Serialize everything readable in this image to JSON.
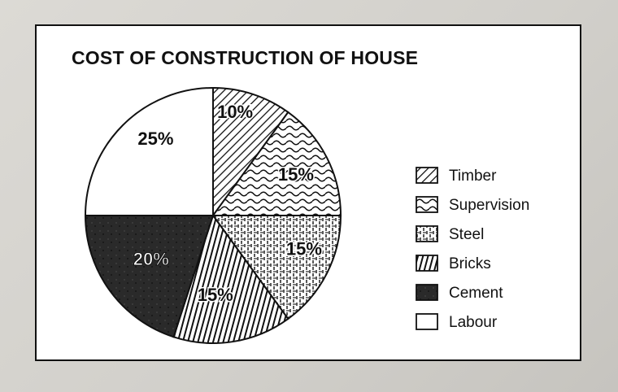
{
  "chart_data": {
    "type": "pie",
    "title": "COST OF CONSTRUCTION OF HOUSE",
    "slices": [
      {
        "name": "Timber",
        "value": 10,
        "label": "10%",
        "pattern": "diagonal-hatch",
        "label_color": "#111111"
      },
      {
        "name": "Supervision",
        "value": 15,
        "label": "15%",
        "pattern": "wavy",
        "label_color": "#111111"
      },
      {
        "name": "Steel",
        "value": 15,
        "label": "15%",
        "pattern": "dashed-grid",
        "label_color": "#111111"
      },
      {
        "name": "Bricks",
        "value": 15,
        "label": "15%",
        "pattern": "vertical-hatch",
        "label_color": "#111111"
      },
      {
        "name": "Cement",
        "value": 20,
        "label": "20%",
        "pattern": "solid-dark",
        "label_color": "#ffffff"
      },
      {
        "name": "Labour",
        "value": 25,
        "label": "25%",
        "pattern": "blank",
        "label_color": "#111111"
      }
    ],
    "legend": {
      "position": "right"
    },
    "colors": {
      "dark": "#222222",
      "line": "#111111",
      "background": "#ffffff"
    }
  }
}
